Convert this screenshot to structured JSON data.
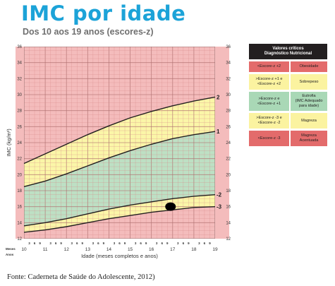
{
  "title": "IMC por idade",
  "subtitle": "Dos 10 aos 19 anos (escores-z)",
  "caption": "Fonte: Caderneta de Saúde do Adolescente, 2012)",
  "colors": {
    "red_zone": "#f4bcbc",
    "yellow_zone": "#fbf6a8",
    "green_zone": "#bde0c4",
    "curve": "#231f20",
    "grid_red": "#d98a8a",
    "grid_yellow": "#c8bf6a",
    "grid_green": "#7fb694",
    "marker": "#000000"
  },
  "legend": {
    "header_line1": "Valores críticos",
    "header_line2": "Diagnóstico Nutricional",
    "rows": [
      {
        "left": [
          "<Escore-z +2"
        ],
        "right": [
          "Obesidade"
        ],
        "color": "#e36b6b"
      },
      {
        "left": [
          ">Escore-z +1 e",
          "<Escore-z +2"
        ],
        "right": [
          "Sobrepeso"
        ],
        "color": "#fbf3a0"
      },
      {
        "left": [
          ">Escore-z e",
          "<Escore-z +1"
        ],
        "right": [
          "Eutrofia",
          "(IMC Adequado",
          "para idade)"
        ],
        "color": "#a9d8b6"
      },
      {
        "left": [
          ">Escore-z -3 e",
          "<Escore-z -2"
        ],
        "right": [
          "Magreza"
        ],
        "color": "#fbf3a0"
      },
      {
        "left": [
          "<Escore-z -3"
        ],
        "right": [
          "Magreza",
          "Acentuada"
        ],
        "color": "#e36b6b"
      }
    ]
  },
  "chart_data": {
    "type": "line",
    "ylabel": "IMC (kg/m²)",
    "xlabel": "Idade (meses completos e anos)",
    "months_label": "Meses",
    "years_label": "Anos",
    "month_ticks": [
      "3",
      "6",
      "9"
    ],
    "xlim": [
      10,
      19
    ],
    "ylim": [
      12,
      36
    ],
    "x_ticks": [
      "10",
      "11",
      "12",
      "13",
      "14",
      "15",
      "16",
      "17",
      "18",
      "19"
    ],
    "y_ticks": [
      "12",
      "14",
      "16",
      "18",
      "20",
      "22",
      "24",
      "26",
      "28",
      "30",
      "32",
      "34",
      "36"
    ],
    "series": [
      {
        "name": "2",
        "x": [
          10,
          11,
          12,
          13,
          14,
          15,
          16,
          17,
          18,
          19
        ],
        "values": [
          21.4,
          22.6,
          23.8,
          25.0,
          26.1,
          27.1,
          27.9,
          28.6,
          29.2,
          29.7
        ]
      },
      {
        "name": "1",
        "x": [
          10,
          11,
          12,
          13,
          14,
          15,
          16,
          17,
          18,
          19
        ],
        "values": [
          18.5,
          19.2,
          20.1,
          21.1,
          22.1,
          23.0,
          23.8,
          24.5,
          25.0,
          25.4
        ]
      },
      {
        "name": "-2",
        "x": [
          10,
          11,
          12,
          13,
          14,
          15,
          16,
          17,
          18,
          19
        ],
        "values": [
          13.6,
          14.0,
          14.5,
          15.1,
          15.7,
          16.2,
          16.6,
          17.0,
          17.3,
          17.5
        ]
      },
      {
        "name": "-3",
        "x": [
          10,
          11,
          12,
          13,
          14,
          15,
          16,
          17,
          18,
          19
        ],
        "values": [
          12.8,
          13.1,
          13.5,
          14.0,
          14.5,
          14.9,
          15.3,
          15.6,
          15.9,
          16.0
        ]
      }
    ],
    "marker": {
      "x": 16.9,
      "y": 16.0
    }
  }
}
